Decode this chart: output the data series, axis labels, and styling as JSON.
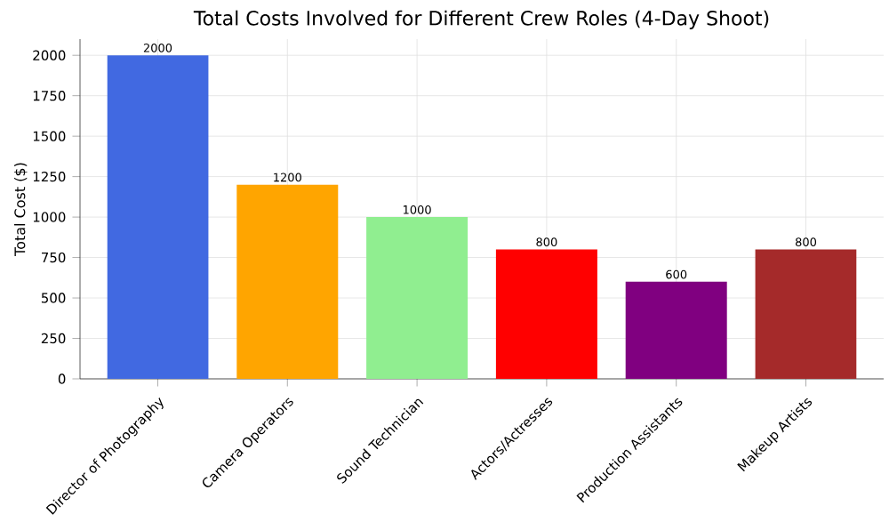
{
  "chart_data": {
    "type": "bar",
    "title": "Total Costs Involved for Different Crew Roles (4-Day Shoot)",
    "ylabel": "Total Cost ($)",
    "categories": [
      "Director of Photography",
      "Camera Operators",
      "Sound Technician",
      "Actors/Actresses",
      "Production Assistants",
      "Makeup Artists"
    ],
    "values": [
      2000,
      1200,
      1000,
      800,
      600,
      800
    ],
    "colors": [
      "#4169e1",
      "#ffa500",
      "#90ee90",
      "#ff0000",
      "#800080",
      "#a52a2a"
    ],
    "ylim": [
      0,
      2100
    ],
    "yticks": [
      0,
      250,
      500,
      750,
      1000,
      1250,
      1500,
      1750,
      2000
    ],
    "grid": true,
    "data_labels": true
  }
}
